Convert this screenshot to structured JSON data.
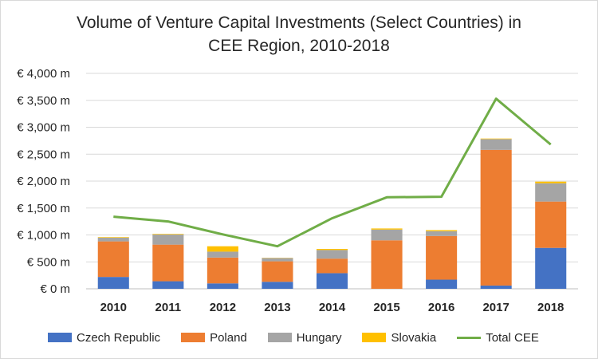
{
  "chart_data": {
    "type": "bar",
    "stacked": true,
    "title_line1": "Volume of Venture Capital Investments (Select Countries) in",
    "title_line2": "CEE Region, 2010-2018",
    "categories": [
      "2010",
      "2011",
      "2012",
      "2013",
      "2014",
      "2015",
      "2016",
      "2017",
      "2018"
    ],
    "y_ticks": [
      "€ 0 m",
      "€ 500 m",
      "€ 1,000 m",
      "€ 1,500 m",
      "€ 2,000 m",
      "€ 2,500 m",
      "€ 3,000 m",
      "€ 3,500 m",
      "€ 4,000 m"
    ],
    "ylim": [
      0,
      4000
    ],
    "grid": true,
    "legend_position": "bottom",
    "series": [
      {
        "name": "Czech Republic",
        "type": "bar",
        "color": "#4472c4",
        "values": [
          220,
          140,
          100,
          130,
          290,
          0,
          170,
          60,
          760
        ]
      },
      {
        "name": "Poland",
        "type": "bar",
        "color": "#ed7d31",
        "values": [
          660,
          680,
          480,
          380,
          270,
          900,
          810,
          2520,
          860
        ]
      },
      {
        "name": "Hungary",
        "type": "bar",
        "color": "#a5a5a5",
        "values": [
          70,
          190,
          110,
          60,
          160,
          200,
          90,
          200,
          340
        ]
      },
      {
        "name": "Slovakia",
        "type": "bar",
        "color": "#ffc000",
        "values": [
          10,
          10,
          100,
          5,
          20,
          20,
          20,
          10,
          30
        ]
      },
      {
        "name": "Total CEE",
        "type": "line",
        "color": "#70ad47",
        "values": [
          1340,
          1250,
          1010,
          790,
          1310,
          1700,
          1710,
          3530,
          2680
        ]
      }
    ]
  }
}
